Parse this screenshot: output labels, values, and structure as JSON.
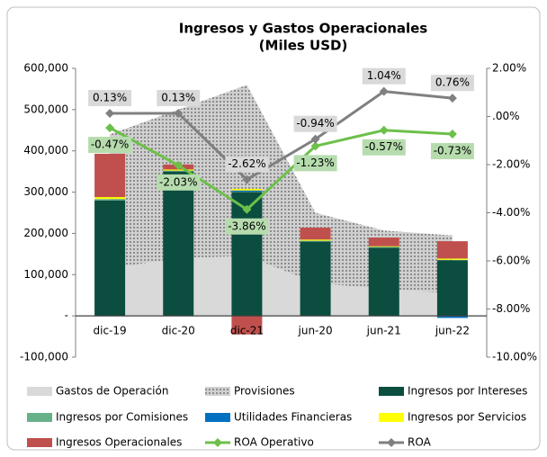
{
  "chart_data": {
    "type": "combo",
    "title": "Ingresos y Gastos Operacionales",
    "subtitle": "(Miles USD)",
    "categories": [
      "dic-19",
      "dic-20",
      "dic-21",
      "jun-20",
      "jun-21",
      "jun-22"
    ],
    "ylim": [
      -100000,
      600000
    ],
    "yticks": [
      {
        "value": 600000,
        "label": "600,000"
      },
      {
        "value": 500000,
        "label": "500,000"
      },
      {
        "value": 400000,
        "label": "400,000"
      },
      {
        "value": 300000,
        "label": "300,000"
      },
      {
        "value": 200000,
        "label": "200,000"
      },
      {
        "value": 100000,
        "label": "100,000"
      },
      {
        "value": 0,
        "label": "-"
      },
      {
        "value": -100000,
        "label": "-100,000"
      }
    ],
    "y2lim": [
      -10,
      2
    ],
    "y2ticks": [
      {
        "value": 2,
        "label": "2.00%"
      },
      {
        "value": 0,
        "label": ".00%"
      },
      {
        "value": -2,
        "label": "-2.00%"
      },
      {
        "value": -4,
        "label": "-4.00%"
      },
      {
        "value": -6,
        "label": "-6.00%"
      },
      {
        "value": -8,
        "label": "-8.00%"
      },
      {
        "value": -10,
        "label": "-10.00%"
      }
    ],
    "grid": false,
    "series": [
      {
        "name": "Gastos de Operación",
        "type": "area",
        "color": "#d9d9d9",
        "values": [
          115000,
          140000,
          145000,
          80000,
          65000,
          55000
        ]
      },
      {
        "name": "Provisiones",
        "type": "area",
        "color": "#a6a6a6",
        "pattern": true,
        "values": [
          325000,
          360000,
          415000,
          170000,
          142000,
          140000
        ]
      },
      {
        "name": "Ingresos por Intereses",
        "type": "bar",
        "color": "#0b4d3f",
        "values": [
          280000,
          350000,
          300000,
          180000,
          165000,
          135000
        ]
      },
      {
        "name": "Ingresos por Comisiones",
        "type": "bar",
        "color": "#66b08a",
        "values": [
          2000,
          1000,
          1000,
          1000,
          1000,
          1000
        ]
      },
      {
        "name": "Utilidades Financieras",
        "type": "bar",
        "color": "#0070c0",
        "values": [
          1000,
          1000,
          3000,
          1000,
          1000,
          -5000
        ]
      },
      {
        "name": "Ingresos por Servicios",
        "type": "bar",
        "color": "#ffff00",
        "values": [
          5000,
          3000,
          4000,
          3000,
          2000,
          3000
        ]
      },
      {
        "name": "Ingresos Operacionales",
        "type": "bar",
        "color": "#c0504d",
        "values": [
          105000,
          12000,
          -45000,
          29000,
          21000,
          42000
        ]
      },
      {
        "name": "ROA Operativo",
        "type": "line",
        "axis": "y2",
        "color": "#6cc04a",
        "label_bg": "#b6dcae",
        "values": [
          -0.47,
          -2.03,
          -3.86,
          -1.23,
          -0.57,
          -0.73
        ],
        "value_labels": [
          "-0.47%",
          "-2.03%",
          "-3.86%",
          "-1.23%",
          "-0.57%",
          "-0.73%"
        ]
      },
      {
        "name": "ROA",
        "type": "line",
        "axis": "y2",
        "color": "#808080",
        "label_bg": "#d9d9d9",
        "values": [
          0.13,
          0.13,
          -2.62,
          -0.94,
          1.04,
          0.76
        ],
        "value_labels": [
          "0.13%",
          "0.13%",
          "-2.62%",
          "-0.94%",
          "1.04%",
          "0.76%"
        ]
      }
    ]
  }
}
